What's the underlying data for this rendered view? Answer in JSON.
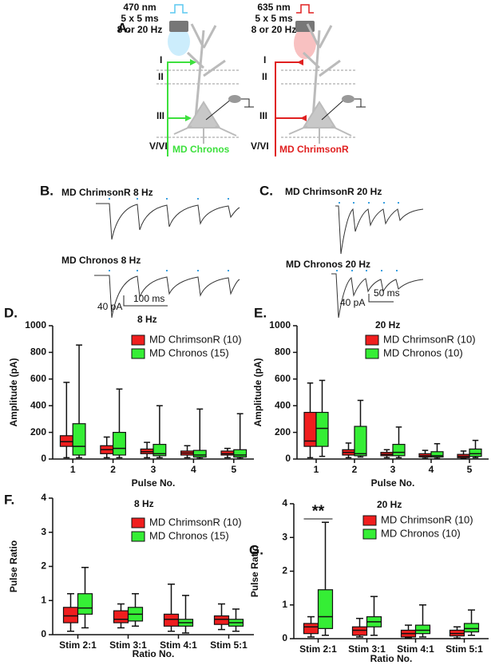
{
  "figure": {
    "panel_a": {
      "label": "A.",
      "left": {
        "wavelength": "470 nm",
        "pulses": "5 x 5 ms",
        "frequency": "8 or 20 Hz",
        "layers": [
          "I",
          "II",
          "III",
          "V/VI"
        ],
        "input": "MD Chronos"
      },
      "right": {
        "wavelength": "635 nm",
        "pulses": "5 x 5 ms",
        "frequency": "8 or 20 Hz",
        "layers": [
          "I",
          "II",
          "III",
          "V/VI"
        ],
        "input": "MD ChrimsonR"
      }
    },
    "panel_b": {
      "label": "B.",
      "top": "MD ChrimsonR 8 Hz",
      "bottom": "MD Chronos 8 Hz",
      "scale_x": "100 ms",
      "scale_y": "40 pA"
    },
    "panel_c": {
      "label": "C.",
      "top": "MD ChrimsonR 20 Hz",
      "bottom": "MD Chronos 20 Hz",
      "scale_x": "50 ms",
      "scale_y": "40 pA"
    }
  },
  "chart_data": [
    {
      "type": "box",
      "panel": "D.",
      "title": "8 Hz",
      "ylabel": "Amplitude (pA)",
      "xlabel": "Pulse No.",
      "categories": [
        "1",
        "2",
        "3",
        "4",
        "5"
      ],
      "ylim": [
        0,
        1000
      ],
      "yticks": [
        0,
        200,
        400,
        600,
        800,
        1000
      ],
      "series": [
        {
          "name": "MD ChrimsonR (10)",
          "color": "#f01e1e",
          "values": [
            {
              "min": 10,
              "q1": 95,
              "median": 130,
              "q3": 175,
              "max": 575
            },
            {
              "min": 10,
              "q1": 40,
              "median": 70,
              "q3": 100,
              "max": 165
            },
            {
              "min": 10,
              "q1": 40,
              "median": 55,
              "q3": 75,
              "max": 125
            },
            {
              "min": 10,
              "q1": 30,
              "median": 45,
              "q3": 60,
              "max": 100
            },
            {
              "min": 10,
              "q1": 30,
              "median": 40,
              "q3": 60,
              "max": 80
            }
          ]
        },
        {
          "name": "MD Chronos (15)",
          "color": "#35ee35",
          "values": [
            {
              "min": 10,
              "q1": 30,
              "median": 95,
              "q3": 265,
              "max": 855
            },
            {
              "min": 10,
              "q1": 30,
              "median": 80,
              "q3": 200,
              "max": 525
            },
            {
              "min": 10,
              "q1": 25,
              "median": 40,
              "q3": 110,
              "max": 400
            },
            {
              "min": 5,
              "q1": 15,
              "median": 30,
              "q3": 65,
              "max": 375
            },
            {
              "min": 5,
              "q1": 15,
              "median": 30,
              "q3": 70,
              "max": 340
            }
          ]
        }
      ]
    },
    {
      "type": "box",
      "panel": "E.",
      "title": "20 Hz",
      "ylabel": "Amplitude (pA)",
      "xlabel": "Pulse No.",
      "categories": [
        "1",
        "2",
        "3",
        "4",
        "5"
      ],
      "ylim": [
        0,
        1000
      ],
      "yticks": [
        0,
        200,
        400,
        600,
        800,
        1000
      ],
      "series": [
        {
          "name": "MD ChrimsonR (10)",
          "color": "#f01e1e",
          "values": [
            {
              "min": 10,
              "q1": 95,
              "median": 135,
              "q3": 350,
              "max": 570
            },
            {
              "min": 10,
              "q1": 30,
              "median": 50,
              "q3": 70,
              "max": 120
            },
            {
              "min": 10,
              "q1": 25,
              "median": 35,
              "q3": 50,
              "max": 70
            },
            {
              "min": 5,
              "q1": 15,
              "median": 25,
              "q3": 40,
              "max": 65
            },
            {
              "min": 5,
              "q1": 10,
              "median": 20,
              "q3": 35,
              "max": 60
            }
          ]
        },
        {
          "name": "MD Chronos (10)",
          "color": "#35ee35",
          "values": [
            {
              "min": 20,
              "q1": 95,
              "median": 230,
              "q3": 350,
              "max": 590
            },
            {
              "min": 15,
              "q1": 25,
              "median": 40,
              "q3": 245,
              "max": 440
            },
            {
              "min": 10,
              "q1": 25,
              "median": 50,
              "q3": 110,
              "max": 240
            },
            {
              "min": 5,
              "q1": 15,
              "median": 25,
              "q3": 55,
              "max": 115
            },
            {
              "min": 10,
              "q1": 20,
              "median": 40,
              "q3": 75,
              "max": 140
            }
          ]
        }
      ]
    },
    {
      "type": "box",
      "panel": "F.",
      "title": "8 Hz",
      "ylabel": "Pulse Ratio",
      "xlabel": "Ratio No.",
      "categories": [
        "Stim 2:1",
        "Stim 3:1",
        "Stim 4:1",
        "Stim 5:1"
      ],
      "ylim": [
        0,
        4
      ],
      "yticks": [
        0,
        1,
        2,
        3,
        4
      ],
      "series": [
        {
          "name": "MD ChrimsonR (10)",
          "color": "#f01e1e",
          "values": [
            {
              "min": 0.1,
              "q1": 0.35,
              "median": 0.55,
              "q3": 0.8,
              "max": 1.2
            },
            {
              "min": 0.2,
              "q1": 0.35,
              "median": 0.45,
              "q3": 0.7,
              "max": 0.9
            },
            {
              "min": 0.1,
              "q1": 0.25,
              "median": 0.45,
              "q3": 0.6,
              "max": 1.48
            },
            {
              "min": 0.15,
              "q1": 0.3,
              "median": 0.45,
              "q3": 0.55,
              "max": 0.9
            }
          ]
        },
        {
          "name": "MD Chronos (15)",
          "color": "#35ee35",
          "values": [
            {
              "min": 0.2,
              "q1": 0.6,
              "median": 0.78,
              "q3": 1.2,
              "max": 1.97
            },
            {
              "min": 0.25,
              "q1": 0.4,
              "median": 0.6,
              "q3": 0.8,
              "max": 1.2
            },
            {
              "min": 0.05,
              "q1": 0.25,
              "median": 0.35,
              "q3": 0.45,
              "max": 1.15
            },
            {
              "min": 0.1,
              "q1": 0.25,
              "median": 0.35,
              "q3": 0.45,
              "max": 0.75
            }
          ]
        }
      ]
    },
    {
      "type": "box",
      "panel": "G.",
      "title": "20 Hz",
      "ylabel": "Pulse Ratio",
      "xlabel": "Ratio No.",
      "annotation": "**",
      "categories": [
        "Stim 2:1",
        "Stim 3:1",
        "Stim 4:1",
        "Stim 5:1"
      ],
      "ylim": [
        0,
        4
      ],
      "yticks": [
        0,
        1,
        2,
        3,
        4
      ],
      "series": [
        {
          "name": "MD ChrimsonR (10)",
          "color": "#f01e1e",
          "values": [
            {
              "min": 0.05,
              "q1": 0.15,
              "median": 0.35,
              "q3": 0.45,
              "max": 0.65
            },
            {
              "min": 0.05,
              "q1": 0.1,
              "median": 0.25,
              "q3": 0.35,
              "max": 0.6
            },
            {
              "min": 0.02,
              "q1": 0.05,
              "median": 0.15,
              "q3": 0.25,
              "max": 0.4
            },
            {
              "min": 0.02,
              "q1": 0.08,
              "median": 0.15,
              "q3": 0.25,
              "max": 0.35
            }
          ]
        },
        {
          "name": "MD Chronos (10)",
          "color": "#35ee35",
          "values": [
            {
              "min": 0.1,
              "q1": 0.3,
              "median": 0.65,
              "q3": 1.45,
              "max": 3.45
            },
            {
              "min": 0.1,
              "q1": 0.35,
              "median": 0.5,
              "q3": 0.65,
              "max": 1.25
            },
            {
              "min": 0.05,
              "q1": 0.15,
              "median": 0.25,
              "q3": 0.4,
              "max": 1.0
            },
            {
              "min": 0.1,
              "q1": 0.2,
              "median": 0.3,
              "q3": 0.45,
              "max": 0.85
            }
          ]
        }
      ]
    }
  ]
}
